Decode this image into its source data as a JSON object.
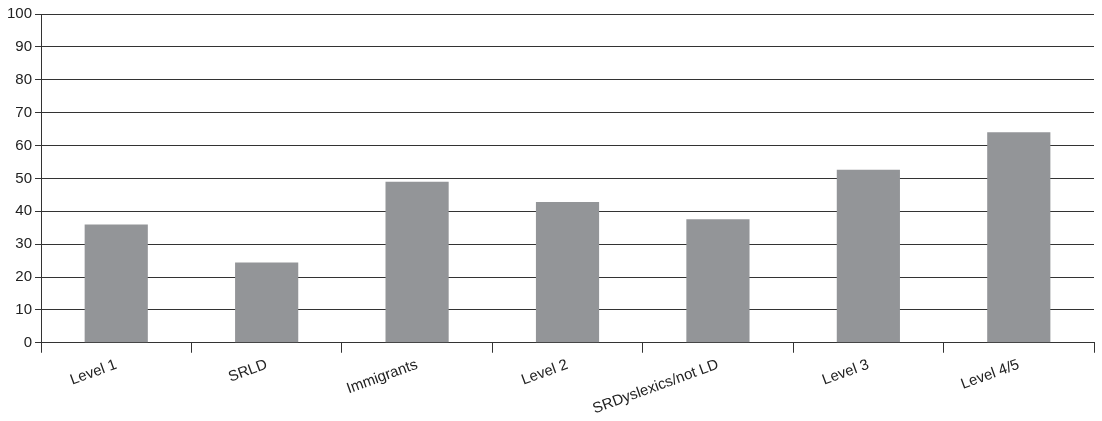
{
  "chart_data": {
    "type": "bar",
    "categories": [
      "Level 1",
      "SRLD",
      "Immigrants",
      "Level 2",
      "SRDyslexics/not LD",
      "Level 3",
      "Level 4/5"
    ],
    "values": [
      36,
      24.4,
      49,
      42.8,
      37.6,
      52.6,
      64
    ],
    "color": "#939598",
    "ylim": [
      0,
      100
    ],
    "yticks": [
      0,
      10,
      20,
      30,
      40,
      50,
      60,
      70,
      80,
      90,
      100
    ],
    "grid": "y",
    "legend": false
  }
}
